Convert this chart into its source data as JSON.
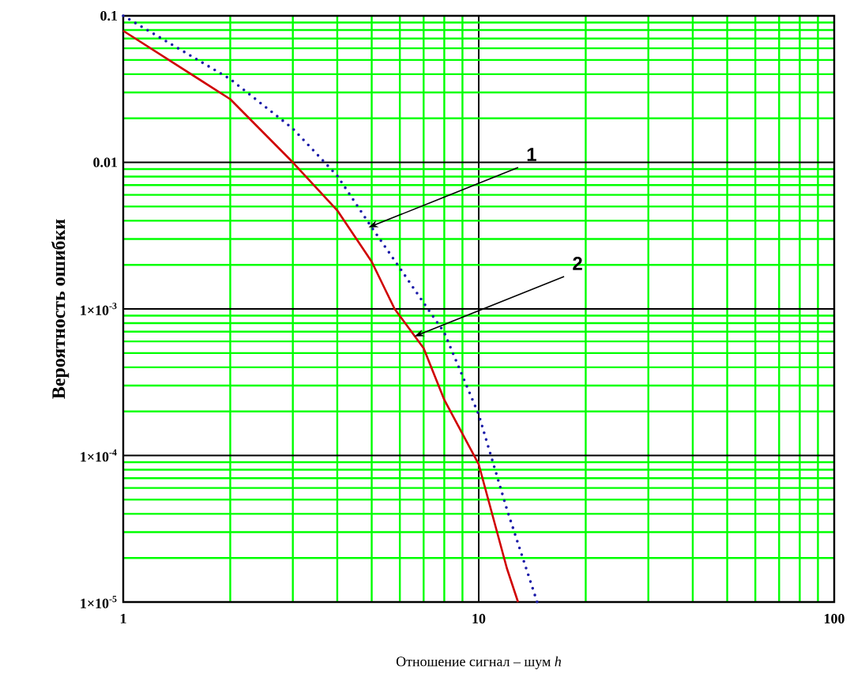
{
  "chart_data": {
    "type": "line",
    "xlabel": "Отношение сигнал – шум *h*",
    "ylabel": "Вероятность ошибки",
    "log": "xy",
    "grid": true,
    "marker": "none",
    "xlim": [
      1,
      100
    ],
    "ylim": [
      1e-05,
      0.1
    ],
    "xticks": [
      1,
      {
        "value": 2,
        "label": null
      },
      {
        "value": 3,
        "label": null
      },
      {
        "value": 4,
        "label": null
      },
      {
        "value": 5,
        "label": null
      },
      {
        "value": 6,
        "label": null
      },
      {
        "value": 7,
        "label": null
      },
      {
        "value": 8,
        "label": null
      },
      {
        "value": 9,
        "label": null
      },
      10,
      {
        "value": 20,
        "label": null
      },
      {
        "value": 30,
        "label": null
      },
      {
        "value": 40,
        "label": null
      },
      {
        "value": 50,
        "label": null
      },
      {
        "value": 60,
        "label": null
      },
      {
        "value": 70,
        "label": null
      },
      {
        "value": 80,
        "label": null
      },
      {
        "value": 90,
        "label": null
      },
      100
    ],
    "yticks": [
      {
        "value": 1e-05,
        "label": "1×10$^{-5}$"
      },
      {
        "value": 2e-05,
        "label": null
      },
      {
        "value": 3e-05,
        "label": null
      },
      {
        "value": 4e-05,
        "label": null
      },
      {
        "value": 5e-05,
        "label": null
      },
      {
        "value": 6e-05,
        "label": null
      },
      {
        "value": 7e-05,
        "label": null
      },
      {
        "value": 8e-05,
        "label": null
      },
      {
        "value": 9e-05,
        "label": null
      },
      {
        "value": 0.0001,
        "label": "1×10$^{-4}$"
      },
      {
        "value": 0.0002,
        "label": null
      },
      {
        "value": 0.0003,
        "label": null
      },
      {
        "value": 0.0004,
        "label": null
      },
      {
        "value": 0.0005,
        "label": null
      },
      {
        "value": 0.0006,
        "label": null
      },
      {
        "value": 0.0007,
        "label": null
      },
      {
        "value": 0.0008,
        "label": null
      },
      {
        "value": 0.0009,
        "label": null
      },
      {
        "value": 0.001,
        "label": "1×10$^{-3}$"
      },
      {
        "value": 0.002,
        "label": null
      },
      {
        "value": 0.003,
        "label": null
      },
      {
        "value": 0.004,
        "label": null
      },
      {
        "value": 0.005,
        "label": null
      },
      {
        "value": 0.006,
        "label": null
      },
      {
        "value": 0.007,
        "label": null
      },
      {
        "value": 0.008,
        "label": null
      },
      {
        "value": 0.009,
        "label": null
      },
      0.01,
      {
        "value": 0.02,
        "label": null
      },
      {
        "value": 0.03,
        "label": null
      },
      {
        "value": 0.04,
        "label": null
      },
      {
        "value": 0.05,
        "label": null
      },
      {
        "value": 0.06,
        "label": null
      },
      {
        "value": 0.07,
        "label": null
      },
      {
        "value": 0.08,
        "label": null
      },
      {
        "value": 0.09,
        "label": null
      },
      0.1
    ],
    "series": [
      {
        "color": "#1a1aa8",
        "line_style": "dotted",
        "x": [
          1,
          2,
          3,
          4,
          5,
          6,
          7,
          8,
          10,
          12,
          14.6
        ],
        "values": [
          0.1,
          0.037,
          0.017,
          0.0081,
          0.0036,
          0.0019,
          0.0011,
          0.00069,
          0.00019,
          4.3e-05,
          1e-05
        ]
      },
      {
        "color": "#d00000",
        "line_style": "solid",
        "x": [
          1,
          2,
          3,
          4,
          5,
          5.8,
          7,
          8,
          10,
          12,
          12.9
        ],
        "values": [
          0.079,
          0.027,
          0.01,
          0.0047,
          0.0021,
          0.001,
          0.00054,
          0.00024,
          8.7e-05,
          1.7e-05,
          1e-05
        ]
      }
    ],
    "annotations": [
      {
        "text": "1",
        "x": 4.9,
        "y": 0.0036
      },
      {
        "text": "2",
        "x": 6.6,
        "y": 0.00065
      }
    ]
  }
}
